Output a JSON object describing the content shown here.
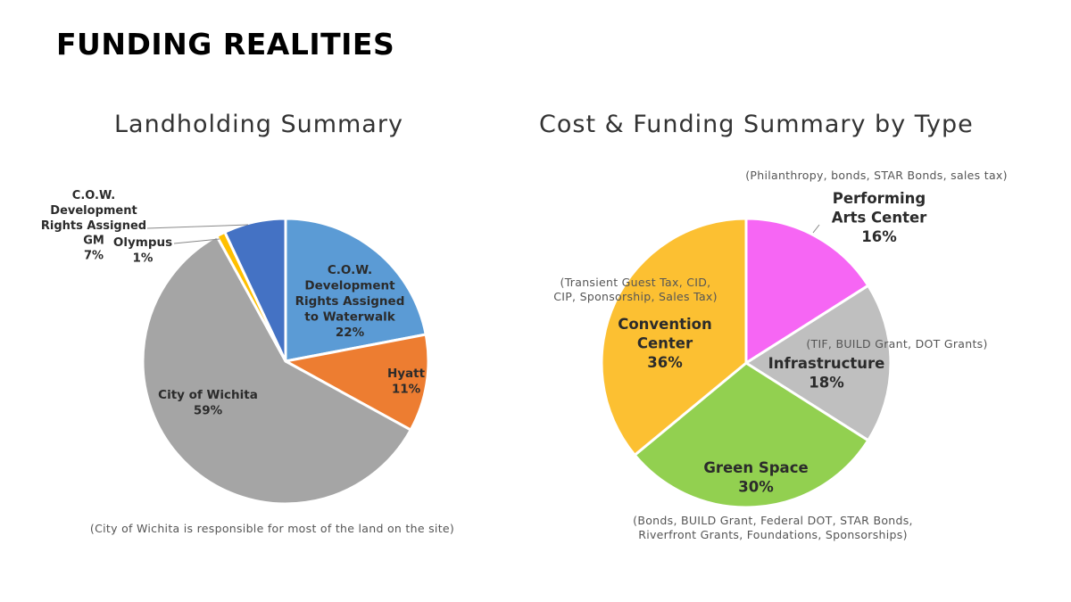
{
  "page": {
    "title": "FUNDING REALITIES"
  },
  "chart_data": [
    {
      "type": "pie",
      "title": "Landholding Summary",
      "slices": [
        {
          "label": [
            "C.O.W.",
            "Development",
            "Rights Assigned",
            "to Waterwalk"
          ],
          "percent_label": "22%",
          "value": 22,
          "color": "#5b9bd5"
        },
        {
          "label": [
            "Hyatt"
          ],
          "percent_label": "11%",
          "value": 11,
          "color": "#ed7d31"
        },
        {
          "label": [
            "City of Wichita"
          ],
          "percent_label": "59%",
          "value": 59,
          "color": "#a5a5a5"
        },
        {
          "label": [
            "Olympus"
          ],
          "percent_label": "1%",
          "value": 1,
          "color": "#ffc000"
        },
        {
          "label": [
            "C.O.W.",
            "Development",
            "Rights Assigned",
            "GM"
          ],
          "percent_label": "7%",
          "value": 7,
          "color": "#4472c4"
        }
      ],
      "caption": "(City of Wichita is responsible for most of the land on the site)"
    },
    {
      "type": "pie",
      "title": "Cost & Funding Summary by Type",
      "slices": [
        {
          "label": [
            "Performing",
            "Arts Center"
          ],
          "percent_label": "16%",
          "value": 16,
          "color": "#f666f4",
          "note": [
            "(Philanthropy, bonds, STAR Bonds, sales tax)"
          ]
        },
        {
          "label": [
            "Infrastructure"
          ],
          "percent_label": "18%",
          "value": 18,
          "color": "#bfbfbf",
          "note": [
            "(TIF, BUILD Grant, DOT Grants)"
          ]
        },
        {
          "label": [
            "Green Space"
          ],
          "percent_label": "30%",
          "value": 30,
          "color": "#92d050",
          "note": [
            "(Bonds, BUILD Grant, Federal DOT, STAR Bonds,",
            "Riverfront Grants, Foundations, Sponsorships)"
          ]
        },
        {
          "label": [
            "Convention",
            "Center"
          ],
          "percent_label": "36%",
          "value": 36,
          "color": "#fcc032",
          "note": [
            "(Transient Guest Tax, CID,",
            "CIP, Sponsorship, Sales Tax)"
          ]
        }
      ]
    }
  ]
}
